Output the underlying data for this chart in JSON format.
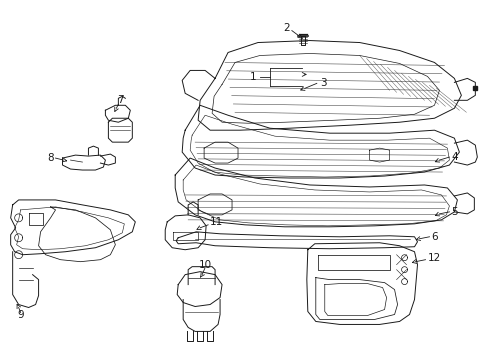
{
  "background_color": "#ffffff",
  "line_color": "#1a1a1a",
  "figsize": [
    4.89,
    3.6
  ],
  "dpi": 100,
  "lw": 0.7,
  "font_size": 7.5
}
